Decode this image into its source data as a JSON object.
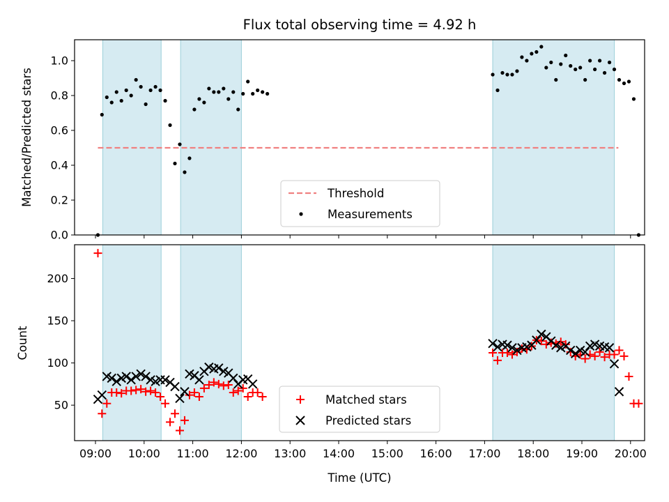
{
  "chart_data": [
    {
      "type": "scatter",
      "title": "Flux total observing time = 4.92 h",
      "xlabel": "",
      "ylabel": "Matched/Predicted stars",
      "xlim": [
        "09:00",
        "20:00"
      ],
      "ylim": [
        0,
        1.12
      ],
      "yticks": [
        "0.0",
        "0.2",
        "0.4",
        "0.6",
        "0.8",
        "1.0"
      ],
      "highlight_intervals": [
        [
          "09:09",
          "10:21"
        ],
        [
          "10:45",
          "12:00"
        ],
        [
          "17:10",
          "19:40"
        ]
      ],
      "highlight_color": "#add8e6",
      "threshold": {
        "name": "Threshold",
        "value": 0.5,
        "x_range": [
          "09:03",
          "19:45"
        ],
        "color": "#f08080",
        "style": "dashed"
      },
      "series": [
        {
          "name": "Measurements",
          "color": "#000000",
          "marker": "dot",
          "points": [
            [
              "09:03",
              0.0
            ],
            [
              "09:08",
              0.69
            ],
            [
              "09:14",
              0.79
            ],
            [
              "09:20",
              0.76
            ],
            [
              "09:26",
              0.82
            ],
            [
              "09:32",
              0.77
            ],
            [
              "09:38",
              0.83
            ],
            [
              "09:44",
              0.8
            ],
            [
              "09:50",
              0.89
            ],
            [
              "09:56",
              0.85
            ],
            [
              "10:02",
              0.75
            ],
            [
              "10:08",
              0.83
            ],
            [
              "10:14",
              0.85
            ],
            [
              "10:20",
              0.83
            ],
            [
              "10:26",
              0.77
            ],
            [
              "10:32",
              0.63
            ],
            [
              "10:38",
              0.41
            ],
            [
              "10:44",
              0.52
            ],
            [
              "10:50",
              0.36
            ],
            [
              "10:56",
              0.44
            ],
            [
              "11:02",
              0.72
            ],
            [
              "11:08",
              0.78
            ],
            [
              "11:14",
              0.76
            ],
            [
              "11:20",
              0.84
            ],
            [
              "11:26",
              0.82
            ],
            [
              "11:32",
              0.82
            ],
            [
              "11:38",
              0.84
            ],
            [
              "11:44",
              0.78
            ],
            [
              "11:50",
              0.82
            ],
            [
              "11:56",
              0.72
            ],
            [
              "12:02",
              0.81
            ],
            [
              "12:08",
              0.88
            ],
            [
              "12:14",
              0.81
            ],
            [
              "12:20",
              0.83
            ],
            [
              "12:26",
              0.82
            ],
            [
              "12:32",
              0.81
            ],
            [
              "17:10",
              0.92
            ],
            [
              "17:16",
              0.83
            ],
            [
              "17:22",
              0.93
            ],
            [
              "17:28",
              0.92
            ],
            [
              "17:34",
              0.92
            ],
            [
              "17:40",
              0.94
            ],
            [
              "17:46",
              1.02
            ],
            [
              "17:52",
              1.0
            ],
            [
              "17:58",
              1.04
            ],
            [
              "18:04",
              1.05
            ],
            [
              "18:10",
              1.08
            ],
            [
              "18:16",
              0.96
            ],
            [
              "18:22",
              0.99
            ],
            [
              "18:28",
              0.89
            ],
            [
              "18:34",
              0.98
            ],
            [
              "18:40",
              1.03
            ],
            [
              "18:46",
              0.97
            ],
            [
              "18:52",
              0.95
            ],
            [
              "18:58",
              0.96
            ],
            [
              "19:04",
              0.89
            ],
            [
              "19:10",
              1.0
            ],
            [
              "19:16",
              0.95
            ],
            [
              "19:22",
              1.0
            ],
            [
              "19:28",
              0.93
            ],
            [
              "19:34",
              0.99
            ],
            [
              "19:40",
              0.95
            ],
            [
              "19:46",
              0.89
            ],
            [
              "19:52",
              0.87
            ],
            [
              "19:58",
              0.88
            ],
            [
              "20:04",
              0.78
            ],
            [
              "20:10",
              0.0
            ]
          ]
        }
      ],
      "legend": {
        "placement": "lower center",
        "entries": [
          "Threshold",
          "Measurements"
        ]
      }
    },
    {
      "type": "scatter",
      "title": "",
      "xlabel": "Time (UTC)",
      "ylabel": "Count",
      "xlim": [
        "09:00",
        "20:00"
      ],
      "ylim": [
        8,
        240
      ],
      "xticks": [
        "09:00",
        "10:00",
        "11:00",
        "12:00",
        "13:00",
        "14:00",
        "15:00",
        "16:00",
        "17:00",
        "18:00",
        "19:00",
        "20:00"
      ],
      "yticks": [
        "50",
        "100",
        "150",
        "200"
      ],
      "highlight_intervals": [
        [
          "09:09",
          "10:21"
        ],
        [
          "10:45",
          "12:00"
        ],
        [
          "17:10",
          "19:40"
        ]
      ],
      "highlight_color": "#add8e6",
      "series": [
        {
          "name": "Matched stars",
          "color": "#ff0000",
          "marker": "plus",
          "points": [
            [
              "09:03",
              230
            ],
            [
              "09:08",
              40
            ],
            [
              "09:14",
              52
            ],
            [
              "09:20",
              65
            ],
            [
              "09:26",
              65
            ],
            [
              "09:32",
              64
            ],
            [
              "09:38",
              67
            ],
            [
              "09:44",
              67
            ],
            [
              "09:50",
              68
            ],
            [
              "09:56",
              69
            ],
            [
              "10:02",
              66
            ],
            [
              "10:08",
              67
            ],
            [
              "10:14",
              65
            ],
            [
              "10:20",
              60
            ],
            [
              "10:26",
              52
            ],
            [
              "10:32",
              30
            ],
            [
              "10:38",
              40
            ],
            [
              "10:44",
              20
            ],
            [
              "10:50",
              32
            ],
            [
              "10:56",
              62
            ],
            [
              "11:02",
              65
            ],
            [
              "11:08",
              60
            ],
            [
              "11:14",
              70
            ],
            [
              "11:20",
              74
            ],
            [
              "11:26",
              77
            ],
            [
              "11:32",
              75
            ],
            [
              "11:38",
              73
            ],
            [
              "11:44",
              74
            ],
            [
              "11:50",
              65
            ],
            [
              "11:56",
              67
            ],
            [
              "12:02",
              70
            ],
            [
              "12:08",
              60
            ],
            [
              "12:14",
              65
            ],
            [
              "12:20",
              65
            ],
            [
              "12:26",
              60
            ],
            [
              "17:10",
              112
            ],
            [
              "17:16",
              103
            ],
            [
              "17:22",
              112
            ],
            [
              "17:28",
              112
            ],
            [
              "17:34",
              110
            ],
            [
              "17:40",
              113
            ],
            [
              "17:46",
              117
            ],
            [
              "17:52",
              116
            ],
            [
              "17:58",
              120
            ],
            [
              "18:04",
              127
            ],
            [
              "18:10",
              126
            ],
            [
              "18:16",
              122
            ],
            [
              "18:22",
              124
            ],
            [
              "18:28",
              123
            ],
            [
              "18:34",
              125
            ],
            [
              "18:40",
              122
            ],
            [
              "18:46",
              113
            ],
            [
              "18:52",
              108
            ],
            [
              "18:58",
              110
            ],
            [
              "19:04",
              105
            ],
            [
              "19:10",
              110
            ],
            [
              "19:16",
              108
            ],
            [
              "19:22",
              113
            ],
            [
              "19:28",
              107
            ],
            [
              "19:34",
              110
            ],
            [
              "19:40",
              110
            ],
            [
              "19:46",
              115
            ],
            [
              "19:52",
              108
            ],
            [
              "19:58",
              84
            ],
            [
              "20:04",
              52
            ],
            [
              "20:10",
              52
            ]
          ]
        },
        {
          "name": "Predicted stars",
          "color": "#000000",
          "marker": "cross",
          "points": [
            [
              "09:03",
              57
            ],
            [
              "09:08",
              62
            ],
            [
              "09:14",
              84
            ],
            [
              "09:20",
              82
            ],
            [
              "09:26",
              78
            ],
            [
              "09:32",
              82
            ],
            [
              "09:38",
              84
            ],
            [
              "09:44",
              80
            ],
            [
              "09:50",
              84
            ],
            [
              "09:56",
              87
            ],
            [
              "10:02",
              84
            ],
            [
              "10:08",
              80
            ],
            [
              "10:14",
              78
            ],
            [
              "10:20",
              80
            ],
            [
              "10:26",
              80
            ],
            [
              "10:32",
              77
            ],
            [
              "10:38",
              72
            ],
            [
              "10:44",
              58
            ],
            [
              "10:50",
              66
            ],
            [
              "10:56",
              87
            ],
            [
              "11:02",
              85
            ],
            [
              "11:08",
              80
            ],
            [
              "11:14",
              90
            ],
            [
              "11:20",
              95
            ],
            [
              "11:26",
              93
            ],
            [
              "11:32",
              94
            ],
            [
              "11:38",
              90
            ],
            [
              "11:44",
              88
            ],
            [
              "11:50",
              82
            ],
            [
              "11:56",
              75
            ],
            [
              "12:02",
              80
            ],
            [
              "12:08",
              81
            ],
            [
              "12:14",
              75
            ],
            [
              "17:10",
              123
            ],
            [
              "17:16",
              119
            ],
            [
              "17:22",
              122
            ],
            [
              "17:28",
              121
            ],
            [
              "17:34",
              118
            ],
            [
              "17:40",
              115
            ],
            [
              "17:46",
              118
            ],
            [
              "17:52",
              119
            ],
            [
              "17:58",
              121
            ],
            [
              "18:04",
              127
            ],
            [
              "18:10",
              134
            ],
            [
              "18:16",
              131
            ],
            [
              "18:22",
              126
            ],
            [
              "18:28",
              121
            ],
            [
              "18:34",
              118
            ],
            [
              "18:40",
              120
            ],
            [
              "18:46",
              115
            ],
            [
              "18:52",
              111
            ],
            [
              "18:58",
              115
            ],
            [
              "19:04",
              113
            ],
            [
              "19:10",
              120
            ],
            [
              "19:16",
              122
            ],
            [
              "19:22",
              120
            ],
            [
              "19:28",
              119
            ],
            [
              "19:34",
              118
            ],
            [
              "19:40",
              99
            ],
            [
              "19:46",
              66
            ]
          ]
        }
      ],
      "legend": {
        "placement": "lower center",
        "entries": [
          "Matched stars",
          "Predicted stars"
        ]
      }
    }
  ]
}
